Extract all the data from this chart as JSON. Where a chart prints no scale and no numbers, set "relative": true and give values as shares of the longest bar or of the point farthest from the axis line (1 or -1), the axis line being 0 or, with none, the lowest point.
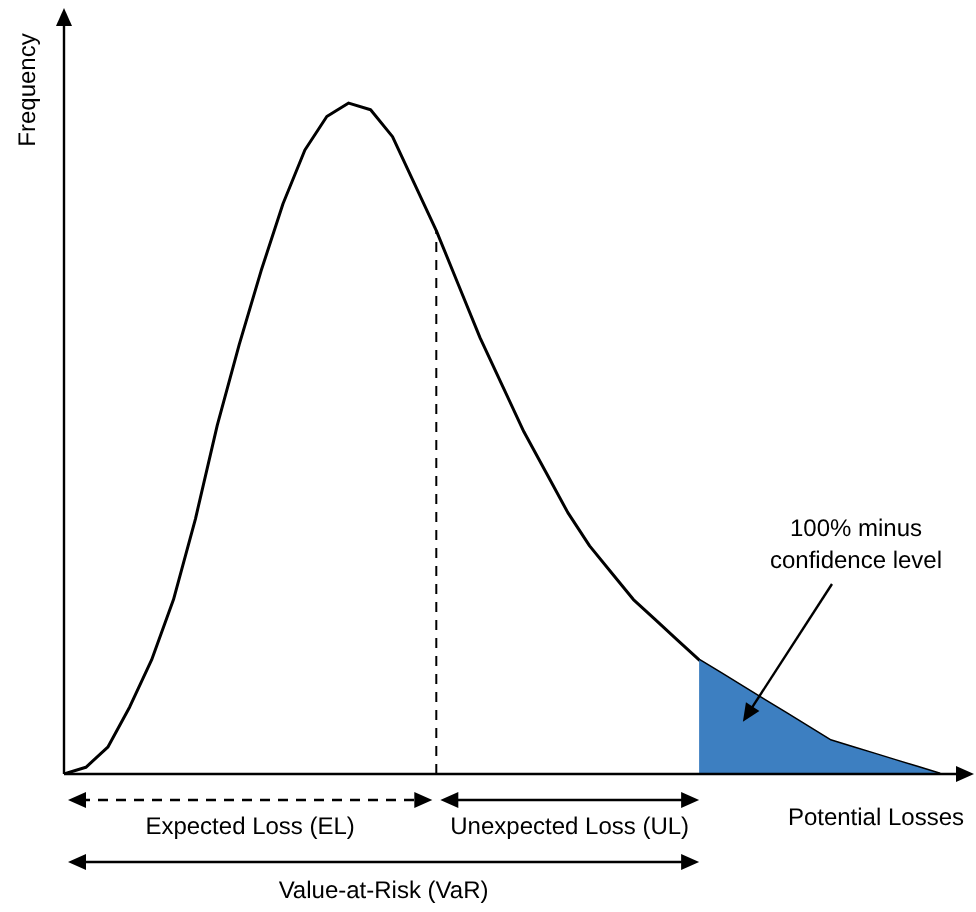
{
  "chart_data": {
    "type": "line",
    "relative": true,
    "xlabel": "Potential Losses",
    "ylabel": "Frequency",
    "grid": false,
    "legend": false,
    "marker": "none",
    "categories": [
      null,
      null,
      null,
      null,
      null,
      null,
      null,
      null,
      null,
      null,
      null,
      null,
      null,
      null,
      null,
      null,
      null,
      null,
      null,
      null,
      null,
      null,
      null,
      null,
      null,
      null,
      null,
      null,
      null,
      null,
      null,
      null,
      null,
      null,
      null,
      null,
      null,
      null,
      null,
      null,
      null
    ],
    "series": [
      {
        "type": "line",
        "color": "#000000",
        "values": [
          0,
          0.01,
          0.04,
          0.1,
          0.17,
          0.26,
          0.38,
          0.52,
          0.64,
          0.75,
          0.85,
          0.93,
          0.98,
          1,
          0.99,
          0.95,
          0.88,
          0.81,
          0.73,
          0.65,
          0.58,
          0.51,
          0.45,
          0.39,
          0.34,
          0.3,
          0.26,
          0.23,
          0.2,
          0.17,
          0.15,
          0.13,
          0.11,
          0.09,
          0.07,
          0.05,
          0.04,
          0.03,
          0.02,
          0.01,
          0
        ]
      },
      {
        "type": "area",
        "color": "#3d7fc1",
        "values": [
          null,
          null,
          null,
          null,
          null,
          null,
          null,
          null,
          null,
          null,
          null,
          null,
          null,
          null,
          null,
          null,
          null,
          null,
          null,
          null,
          null,
          null,
          null,
          null,
          null,
          null,
          null,
          null,
          null,
          0.17,
          0.15,
          0.13,
          0.11,
          0.09,
          0.07,
          0.05,
          0.04,
          0.03,
          0.02,
          0.01,
          0
        ]
      }
    ],
    "annotations": [
      "Expected Loss (EL)",
      "Unexpected Loss (UL)",
      "Value-at-Risk (VaR)",
      "100% minus confidence level"
    ]
  }
}
